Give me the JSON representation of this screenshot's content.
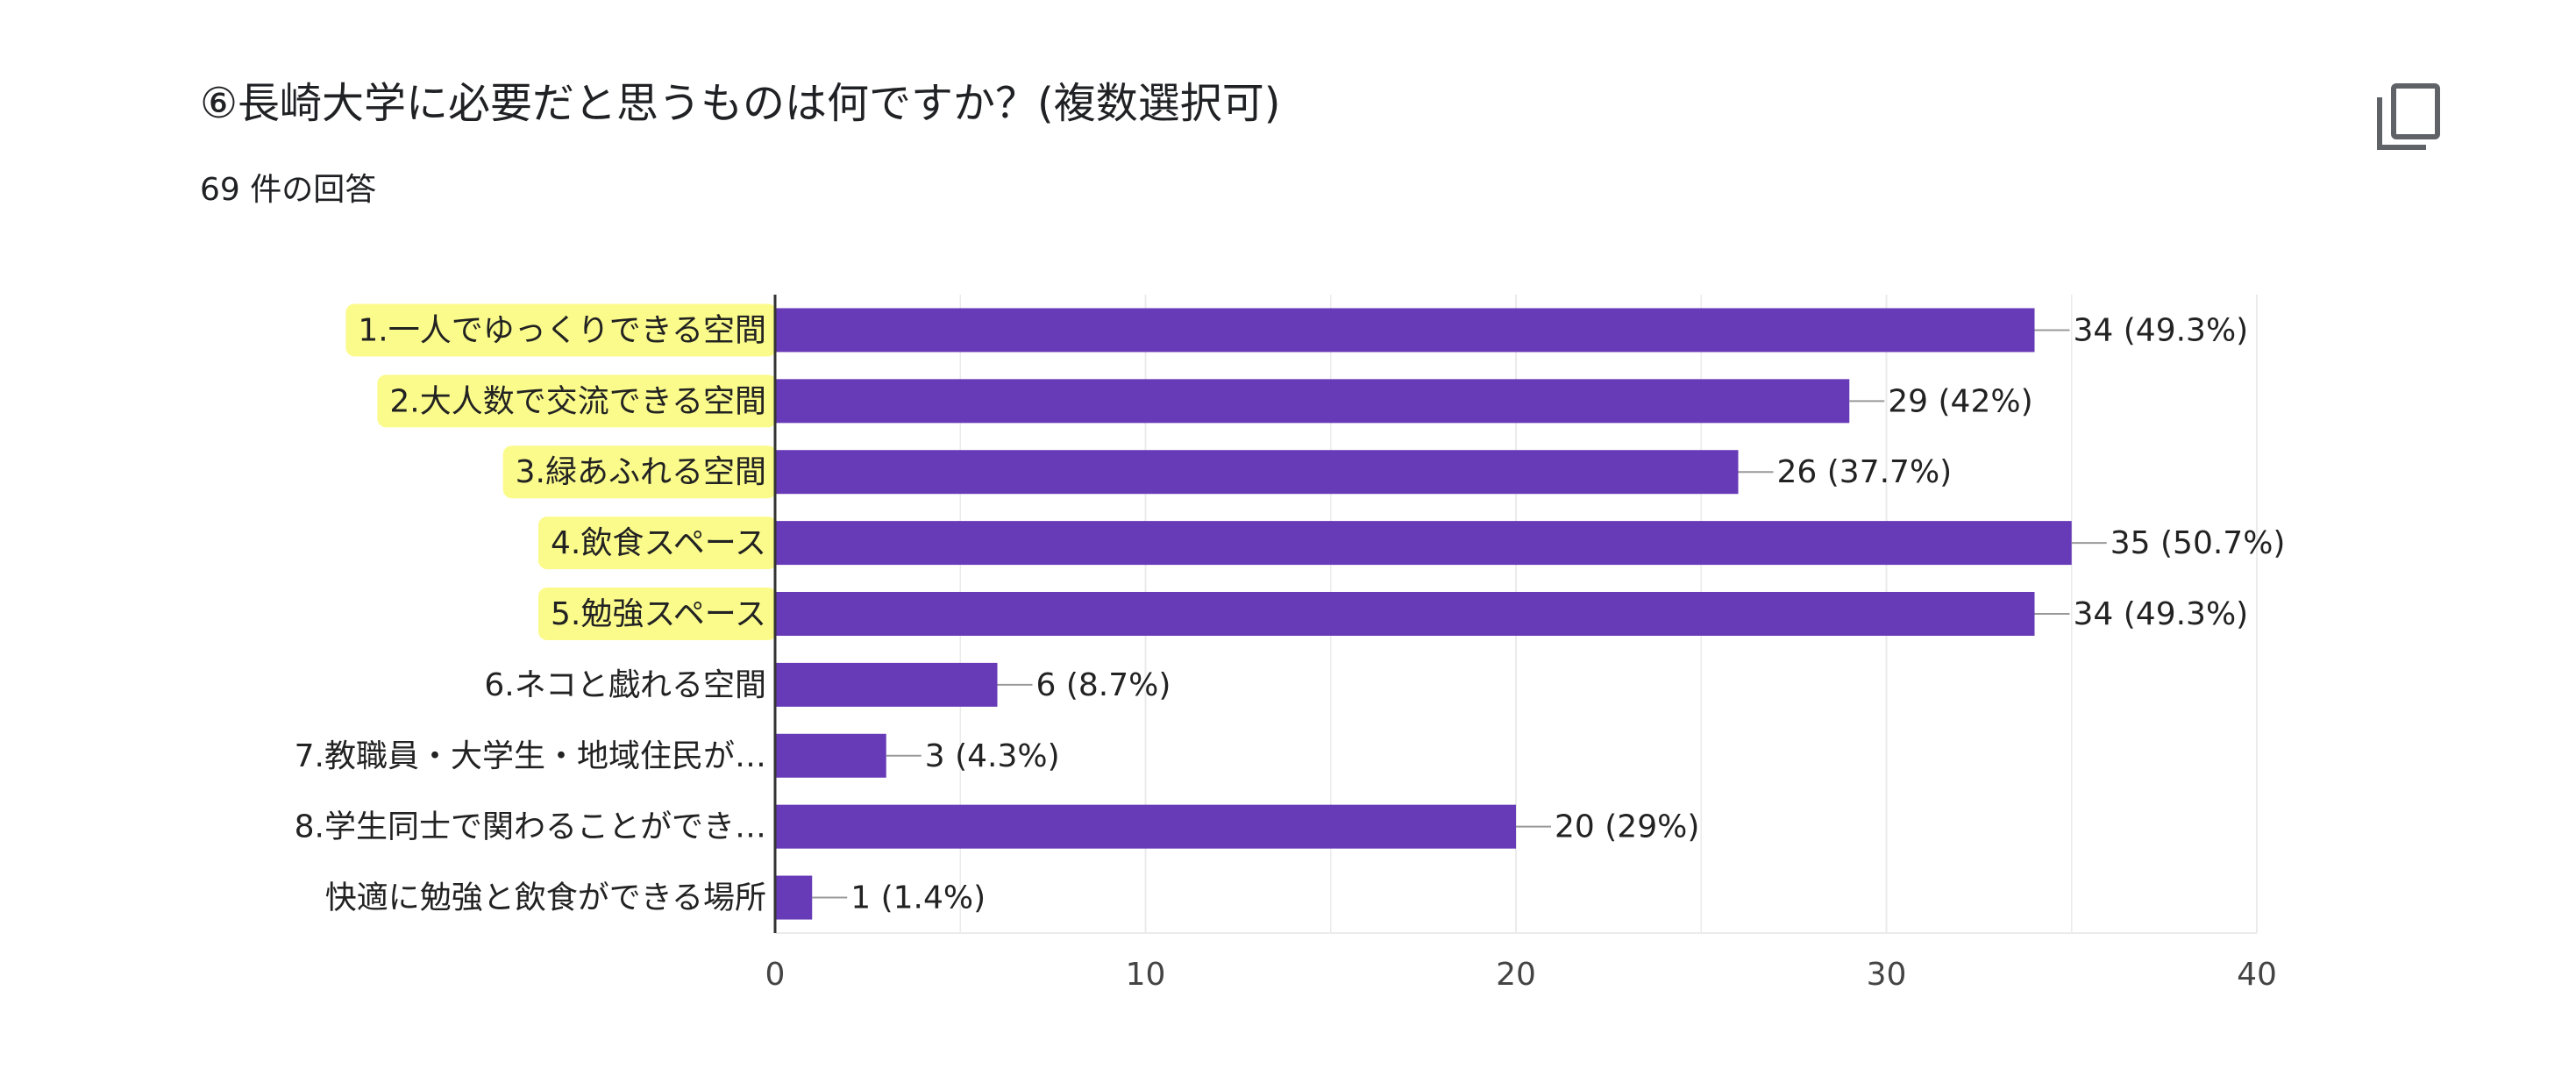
{
  "header": {
    "title": "⑥長崎大学に必要だと思うものは何ですか？(複数選択可)",
    "subtitle": "69 件の回答",
    "copy_icon": "copy-icon"
  },
  "colors": {
    "bar": "#673ab7",
    "highlight": "#fbfb8c",
    "grid": "#ebebeb",
    "axis": "#333333",
    "leader": "#999999"
  },
  "chart_data": {
    "type": "bar",
    "orientation": "horizontal",
    "categories": [
      "1.一人でゆっくりできる空間",
      "2.大人数で交流できる空間",
      "3.緑あふれる空間",
      "4.飲食スペース",
      "5.勉強スペース",
      "6.ネコと戯れる空間",
      "7.教職員・大学生・地域住民が…",
      "8.学生同士で関わることができ…",
      "快適に勉強と飲食ができる場所"
    ],
    "values": [
      34,
      29,
      26,
      35,
      34,
      6,
      3,
      20,
      1
    ],
    "value_labels": [
      "34 (49.3%)",
      "29 (42%)",
      "26 (37.7%)",
      "35 (50.7%)",
      "34 (49.3%)",
      "6 (8.7%)",
      "3 (4.3%)",
      "20 (29%)",
      "1 (1.4%)"
    ],
    "highlighted": [
      true,
      true,
      true,
      true,
      true,
      false,
      false,
      false,
      false
    ],
    "xlim": [
      0,
      40
    ],
    "xticks": [
      0,
      10,
      20,
      30,
      40
    ],
    "grid": true,
    "title": "",
    "xlabel": "",
    "ylabel": ""
  }
}
